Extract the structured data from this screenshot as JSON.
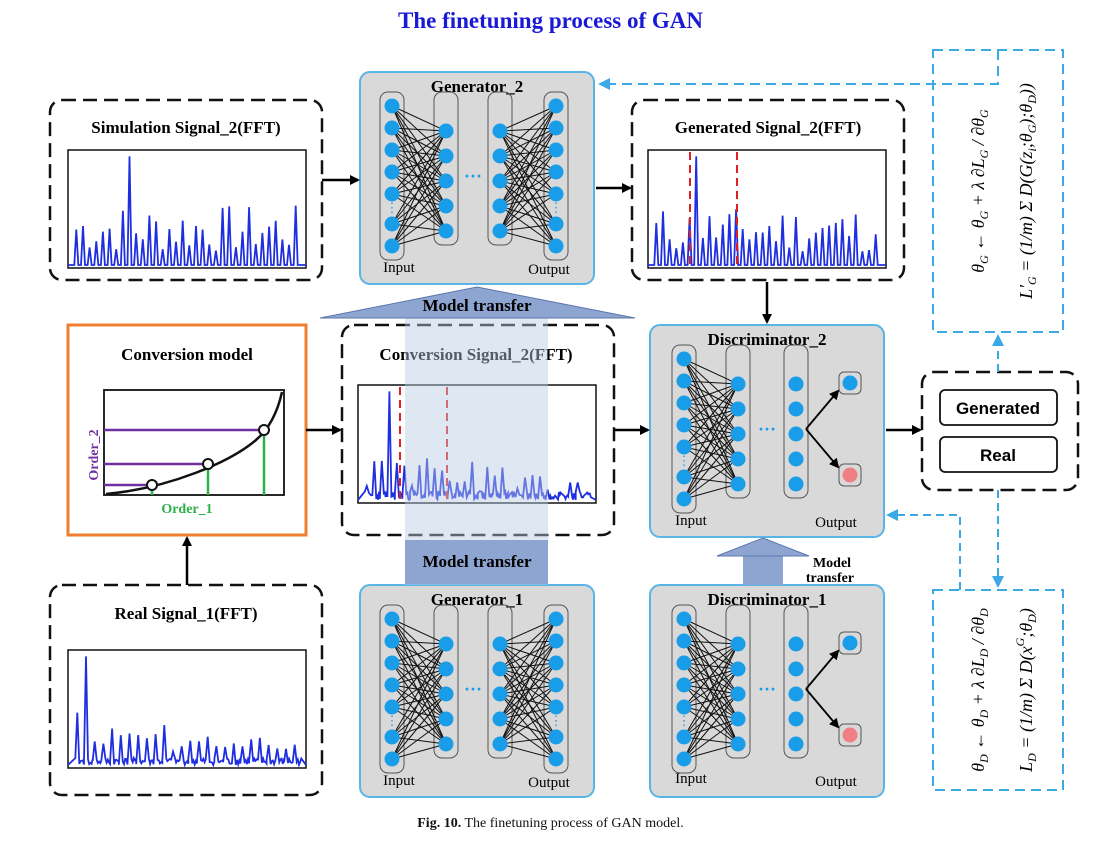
{
  "title": "The finetuning process of GAN",
  "caption": {
    "fig": "Fig. 10.",
    "text": "The finetuning process of GAN model."
  },
  "panels": {
    "simulation": "Simulation Signal_2(FFT)",
    "generated": "Generated Signal_2(FFT)",
    "conversion_signal": "Conversion Signal_2(FFT)",
    "real": "Real Signal_1(FFT)",
    "conversion_model": "Conversion model"
  },
  "networks": {
    "generator_2": "Generator_2",
    "generator_1": "Generator_1",
    "discriminator_2": "Discriminator_2",
    "discriminator_1": "Discriminator_1",
    "input_label": "Input",
    "output_label": "Output"
  },
  "transfer": {
    "top": "Model transfer",
    "bottom": "Model transfer",
    "disc_line1": "Model",
    "disc_line2": "transfer"
  },
  "conversion_model": {
    "y_axis": "Order_2",
    "x_axis": "Order_1"
  },
  "result": {
    "generated": "Generated",
    "real": "Real"
  },
  "colors": {
    "title_blue": "#1a1ad6",
    "signal_blue": "#1f2fe0",
    "node_blue": "#1a9de8",
    "panel_fill": "#d9d9d9",
    "panel_border": "#5ab4e5",
    "orange": "#ef7f2e",
    "purple": "#7030a0",
    "green": "#2bb04a",
    "red_dash": "#e02020",
    "transfer_fill": "#8ea5d1",
    "output_red": "#f07f84"
  },
  "icons": [
    "arrow-right-icon",
    "arrow-down-icon",
    "arrow-up-icon",
    "dashed-arrow-icon"
  ]
}
